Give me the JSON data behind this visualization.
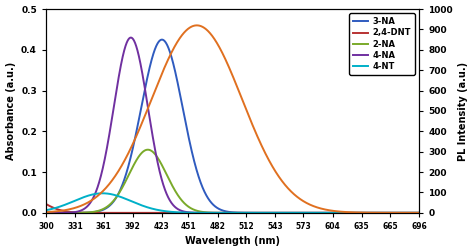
{
  "title": "",
  "xlabel": "Wavelength (nm)",
  "ylabel_left": "Absorbance (a.u.)",
  "ylabel_right": "PL Intensity (a.u.)",
  "xmin": 300,
  "xmax": 696,
  "xticks": [
    300,
    331,
    361,
    392,
    423,
    451,
    482,
    512,
    543,
    573,
    604,
    635,
    665,
    696
  ],
  "ylim_left": [
    0,
    0.5
  ],
  "ylim_right": [
    0,
    1000
  ],
  "yticks_left": [
    0.0,
    0.1,
    0.2,
    0.3,
    0.4,
    0.5
  ],
  "yticks_right": [
    0,
    100,
    200,
    300,
    400,
    500,
    600,
    700,
    800,
    900,
    1000
  ],
  "curves": {
    "3-NA": {
      "color": "#2f5bbf",
      "peak": 423,
      "amplitude": 0.425,
      "sigma": 22,
      "type": "absorbance",
      "skew": 0
    },
    "2,4-DNT": {
      "color": "#b83232",
      "peak": 270,
      "amplitude": 0.055,
      "sigma": 22,
      "type": "absorbance",
      "skew": 0
    },
    "2-NA": {
      "color": "#7aaa2a",
      "peak": 408,
      "amplitude": 0.155,
      "sigma": 20,
      "type": "absorbance",
      "skew": 0
    },
    "4-NA": {
      "color": "#7030a0",
      "peak": 390,
      "amplitude": 0.43,
      "sigma": 18,
      "type": "absorbance",
      "skew": 0
    },
    "4-NT": {
      "color": "#00b0c8",
      "peak": 360,
      "amplitude": 0.048,
      "sigma": 30,
      "type": "absorbance",
      "skew": 0
    },
    "PL": {
      "color": "#e07020",
      "peak": 460,
      "amplitude": 920,
      "sigma": 48,
      "type": "pl",
      "skew": 0
    }
  },
  "legend_labels": [
    "3-NA",
    "2,4-DNT",
    "2-NA",
    "4-NA",
    "4-NT"
  ],
  "legend_colors": [
    "#2f5bbf",
    "#b83232",
    "#7aaa2a",
    "#7030a0",
    "#00b0c8"
  ],
  "bg_color": "#ffffff"
}
